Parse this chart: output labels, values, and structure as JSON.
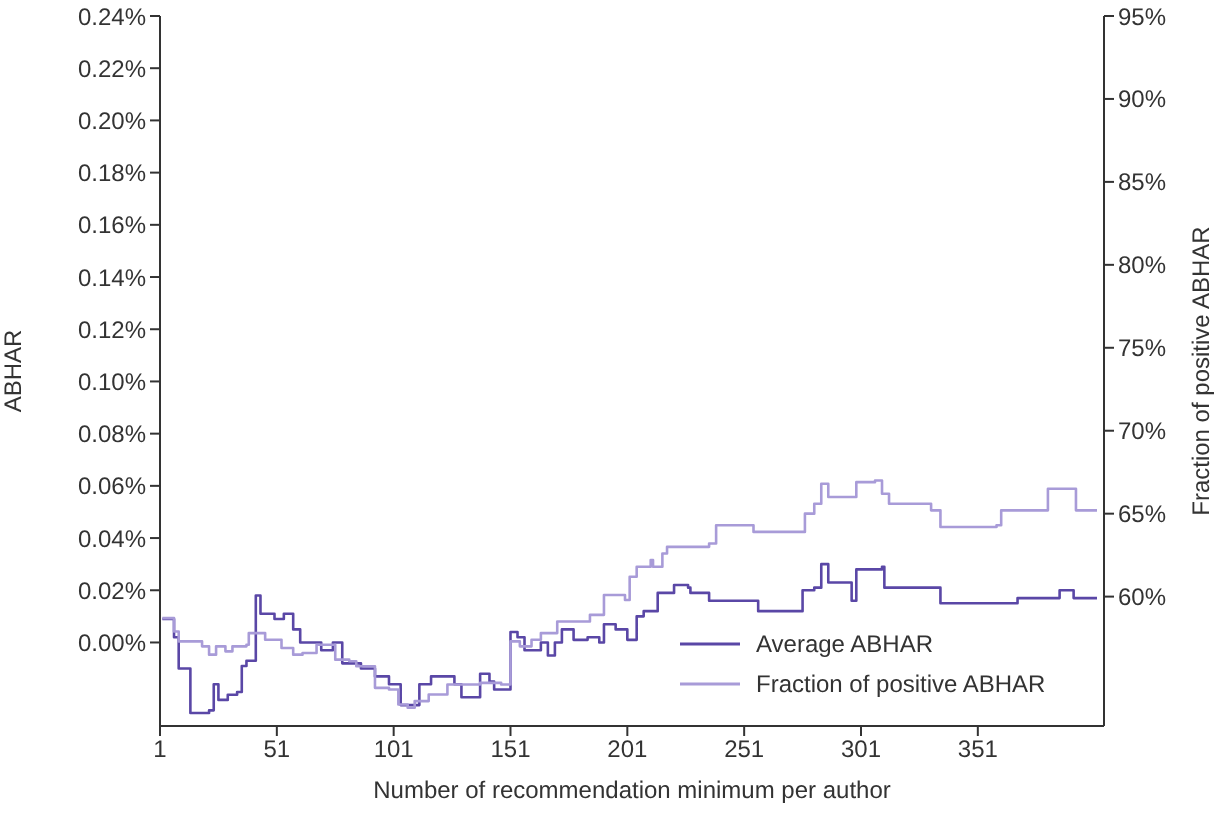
{
  "chart_data": {
    "type": "step",
    "xlabel": "Number of recommendation minimum per author",
    "ylabel": "ABHAR",
    "y2label": "Fraction of positive ABHAR",
    "xlim": [
      1,
      405
    ],
    "xticks": [
      1,
      51,
      101,
      151,
      201,
      251,
      301,
      351
    ],
    "ylim": [
      -0.032,
      0.24
    ],
    "yticks": [
      {
        "value": 0,
        "label": "0.00%"
      },
      {
        "value": 0.02,
        "label": "0.02%"
      },
      {
        "value": 0.04,
        "label": "0.04%"
      },
      {
        "value": 0.06,
        "label": "0.06%"
      },
      {
        "value": 0.08,
        "label": "0.08%"
      },
      {
        "value": 0.1,
        "label": "0.10%"
      },
      {
        "value": 0.12,
        "label": "0.12%"
      },
      {
        "value": 0.14,
        "label": "0.14%"
      },
      {
        "value": 0.16,
        "label": "0.16%"
      },
      {
        "value": 0.18,
        "label": "0.18%"
      },
      {
        "value": 0.2,
        "label": "0.20%"
      },
      {
        "value": 0.22,
        "label": "0.22%"
      },
      {
        "value": 0.24,
        "label": "0.24%"
      }
    ],
    "y2lim": [
      52.2,
      95
    ],
    "y2ticks": [
      {
        "value": 60,
        "label": "60%"
      },
      {
        "value": 65,
        "label": "65%"
      },
      {
        "value": 70,
        "label": "70%"
      },
      {
        "value": 75,
        "label": "75%"
      },
      {
        "value": 80,
        "label": "80%"
      },
      {
        "value": 85,
        "label": "85%"
      },
      {
        "value": 90,
        "label": "90%"
      },
      {
        "value": 95,
        "label": "95%"
      }
    ],
    "grid": false,
    "legend": "bottom right",
    "marker": "none",
    "line_style": "solid",
    "series": [
      {
        "name": "Average ABHAR",
        "color": "#5a47a6",
        "x": [
          2,
          7,
          9,
          13,
          14,
          22,
          24,
          26,
          30,
          34,
          36,
          38,
          42,
          44,
          50,
          54,
          58,
          61,
          70,
          75,
          79,
          87,
          93,
          99,
          104,
          108,
          112,
          117,
          127,
          130,
          136,
          138,
          142,
          144,
          150,
          151,
          154,
          157,
          164,
          167,
          170,
          173,
          178,
          184,
          189,
          191,
          196,
          201,
          205,
          208,
          214,
          221,
          227,
          228,
          236,
          256,
          257,
          273,
          276,
          281,
          284,
          287,
          294,
          297,
          299,
          310,
          311,
          333,
          335,
          359,
          368,
          386,
          392,
          402
        ],
        "values": [
          0.009,
          0.002,
          -0.01,
          -0.01,
          -0.027,
          -0.026,
          -0.016,
          -0.022,
          -0.02,
          -0.019,
          -0.009,
          -0.007,
          0.018,
          0.011,
          0.009,
          0.011,
          0.005,
          0,
          -0.003,
          0,
          -0.008,
          -0.01,
          -0.013,
          -0.016,
          -0.024,
          -0.024,
          -0.016,
          -0.013,
          -0.016,
          -0.021,
          -0.021,
          -0.012,
          -0.015,
          -0.018,
          -0.018,
          0.004,
          0.002,
          -0.003,
          0,
          -0.005,
          0,
          0.005,
          0.001,
          0.002,
          0,
          0.007,
          0.005,
          0.001,
          0.01,
          0.012,
          0.019,
          0.022,
          0.021,
          0.019,
          0.016,
          0.016,
          0.012,
          0.012,
          0.02,
          0.021,
          0.03,
          0.023,
          0.023,
          0.016,
          0.028,
          0.029,
          0.021,
          0.021,
          0.015,
          0.015,
          0.017,
          0.02,
          0.017,
          0.017
        ]
      },
      {
        "name": "Fraction of positive ABHAR",
        "color": "#a89bd8",
        "axis": "y2",
        "x": [
          2,
          7,
          9,
          19,
          22,
          25,
          29,
          32,
          38,
          39,
          43,
          46,
          53,
          58,
          62,
          68,
          73,
          76,
          82,
          85,
          93,
          99,
          103,
          107,
          110,
          116,
          124,
          132,
          138,
          147,
          149,
          151,
          155,
          160,
          164,
          171,
          184,
          185,
          189,
          191,
          200,
          202,
          205,
          211,
          212,
          216,
          218,
          236,
          239,
          253,
          255,
          276,
          277,
          281,
          284,
          287,
          297,
          299,
          307,
          310,
          313,
          331,
          335,
          359,
          361,
          378,
          381,
          392,
          393,
          402
        ],
        "values": [
          58.7,
          57.9,
          57.3,
          57,
          56.5,
          57,
          56.7,
          57,
          57.1,
          57.8,
          57.8,
          57.4,
          56.9,
          56.5,
          56.6,
          57.1,
          57.1,
          56.2,
          56.1,
          55.8,
          54.5,
          54.4,
          53.5,
          53.3,
          53.7,
          54.1,
          54.7,
          54.7,
          54.8,
          54.7,
          54.7,
          57.3,
          57,
          57.4,
          57.8,
          58.5,
          58.5,
          58.9,
          58.9,
          60.1,
          59.8,
          61.2,
          61.8,
          62.2,
          61.8,
          62.6,
          63,
          63.2,
          64.3,
          64.3,
          63.9,
          63.9,
          65,
          65.6,
          66.8,
          66,
          66,
          66.9,
          67,
          66.2,
          65.6,
          65.2,
          64.2,
          64.3,
          65.2,
          65.2,
          66.5,
          66.5,
          65.2,
          65.2
        ]
      }
    ]
  }
}
